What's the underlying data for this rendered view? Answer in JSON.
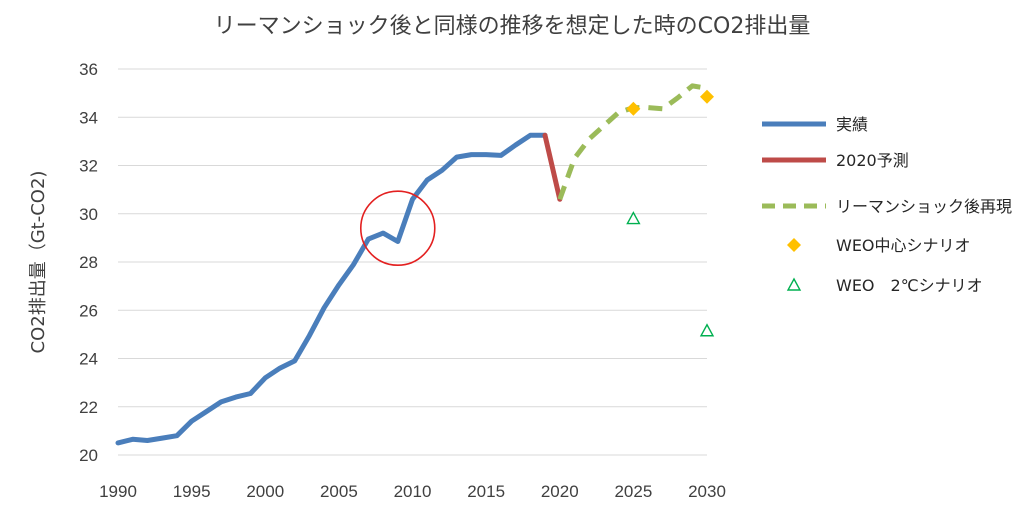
{
  "chart_data": {
    "type": "line",
    "title": "リーマンショック後と同様の推移を想定した時のCO2排出量",
    "ylabel": "CO2排出量（Gt-CO2)",
    "xlabel": "",
    "xlim": [
      1990,
      2030
    ],
    "ylim": [
      20,
      36
    ],
    "x_ticks": [
      1990,
      1995,
      2000,
      2005,
      2010,
      2015,
      2020,
      2025,
      2030
    ],
    "y_ticks": [
      20,
      22,
      24,
      26,
      28,
      30,
      32,
      34,
      36
    ],
    "grid": true,
    "legend_position": "right",
    "colors": {
      "actual": "#4a7ebb",
      "forecast2020": "#be4b48",
      "lehman": "#9bbb59",
      "weo_center": "#ffc000",
      "weo_2c": "#00b050",
      "circle": "#e32020"
    },
    "series": [
      {
        "name": "実績",
        "style": "solid",
        "x": [
          1990,
          1991,
          1992,
          1993,
          1994,
          1995,
          1996,
          1997,
          1998,
          1999,
          2000,
          2001,
          2002,
          2003,
          2004,
          2005,
          2006,
          2007,
          2008,
          2009,
          2010,
          2011,
          2012,
          2013,
          2014,
          2015,
          2016,
          2017,
          2018,
          2019
        ],
        "y": [
          20.5,
          20.65,
          20.6,
          20.7,
          20.8,
          21.4,
          21.8,
          22.2,
          22.4,
          22.55,
          23.2,
          23.6,
          23.9,
          24.95,
          26.1,
          27.05,
          27.9,
          28.95,
          29.2,
          28.85,
          30.6,
          31.4,
          31.8,
          32.35,
          32.45,
          32.45,
          32.42,
          32.85,
          33.25,
          33.25
        ]
      },
      {
        "name": "2020予測",
        "style": "solid",
        "x": [
          2019,
          2020
        ],
        "y": [
          33.25,
          30.6
        ]
      },
      {
        "name": "リーマンショック後再現",
        "style": "dashed",
        "x": [
          2020,
          2021,
          2022,
          2023,
          2024,
          2025,
          2026,
          2027,
          2028,
          2029,
          2030
        ],
        "y": [
          30.6,
          32.3,
          33.1,
          33.65,
          34.2,
          34.4,
          34.4,
          34.35,
          34.8,
          35.3,
          35.2
        ]
      },
      {
        "name": "WEO中心シナリオ",
        "style": "marker-diamond",
        "x": [
          2025,
          2030
        ],
        "y": [
          34.35,
          34.85
        ]
      },
      {
        "name": "WEO　2℃シナリオ",
        "style": "marker-triangle",
        "x": [
          2025,
          2030
        ],
        "y": [
          29.8,
          25.15
        ]
      }
    ],
    "annotations": [
      {
        "type": "circle",
        "x": 2009,
        "y": 29.4
      }
    ]
  }
}
